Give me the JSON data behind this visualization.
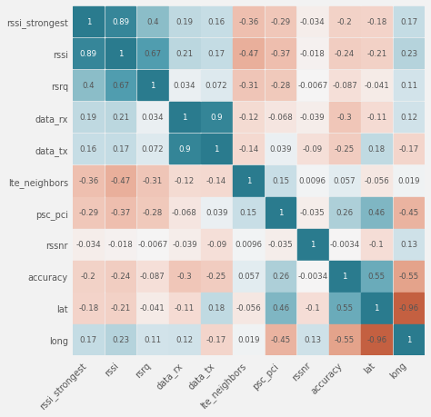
{
  "labels": [
    "rssi_strongest",
    "rssi",
    "rsrq",
    "data_rx",
    "data_tx",
    "lte_neighbors",
    "psc_pci",
    "rssnr",
    "accuracy",
    "lat",
    "long"
  ],
  "matrix": [
    [
      1,
      0.89,
      0.4,
      0.19,
      0.16,
      -0.36,
      -0.29,
      -0.034,
      -0.2,
      -0.18,
      0.17
    ],
    [
      0.89,
      1,
      0.67,
      0.21,
      0.17,
      -0.47,
      -0.37,
      -0.018,
      -0.24,
      -0.21,
      0.23
    ],
    [
      0.4,
      0.67,
      1,
      0.034,
      0.072,
      -0.31,
      -0.28,
      -0.0067,
      -0.087,
      -0.041,
      0.11
    ],
    [
      0.19,
      0.21,
      0.034,
      1,
      0.9,
      -0.12,
      -0.068,
      -0.039,
      -0.3,
      -0.11,
      0.12
    ],
    [
      0.16,
      0.17,
      0.072,
      0.9,
      1,
      -0.14,
      0.039,
      -0.09,
      -0.25,
      0.18,
      -0.17
    ],
    [
      -0.36,
      -0.47,
      -0.31,
      -0.12,
      -0.14,
      1,
      0.15,
      0.0096,
      0.057,
      -0.056,
      0.019
    ],
    [
      -0.29,
      -0.37,
      -0.28,
      -0.068,
      0.039,
      0.15,
      1,
      -0.035,
      0.26,
      0.46,
      -0.45
    ],
    [
      -0.034,
      -0.018,
      -0.0067,
      -0.039,
      -0.09,
      0.0096,
      -0.035,
      1,
      -0.0034,
      -0.1,
      0.13
    ],
    [
      -0.2,
      -0.24,
      -0.087,
      -0.3,
      -0.25,
      0.057,
      0.26,
      -0.0034,
      1,
      0.55,
      -0.55
    ],
    [
      -0.18,
      -0.21,
      -0.041,
      -0.11,
      0.18,
      -0.056,
      0.46,
      -0.1,
      0.55,
      1,
      -0.96
    ],
    [
      0.17,
      0.23,
      0.11,
      0.12,
      -0.17,
      0.019,
      -0.45,
      0.13,
      -0.55,
      -0.96,
      1
    ]
  ],
  "vmin": -1,
  "vmax": 1,
  "figsize": [
    4.74,
    4.6
  ],
  "dpi": 100,
  "fontsize_cell": 6.2,
  "fontsize_tick": 7.0,
  "bg_color": "#f2f2f2",
  "grid_color": "#f2f2f2"
}
